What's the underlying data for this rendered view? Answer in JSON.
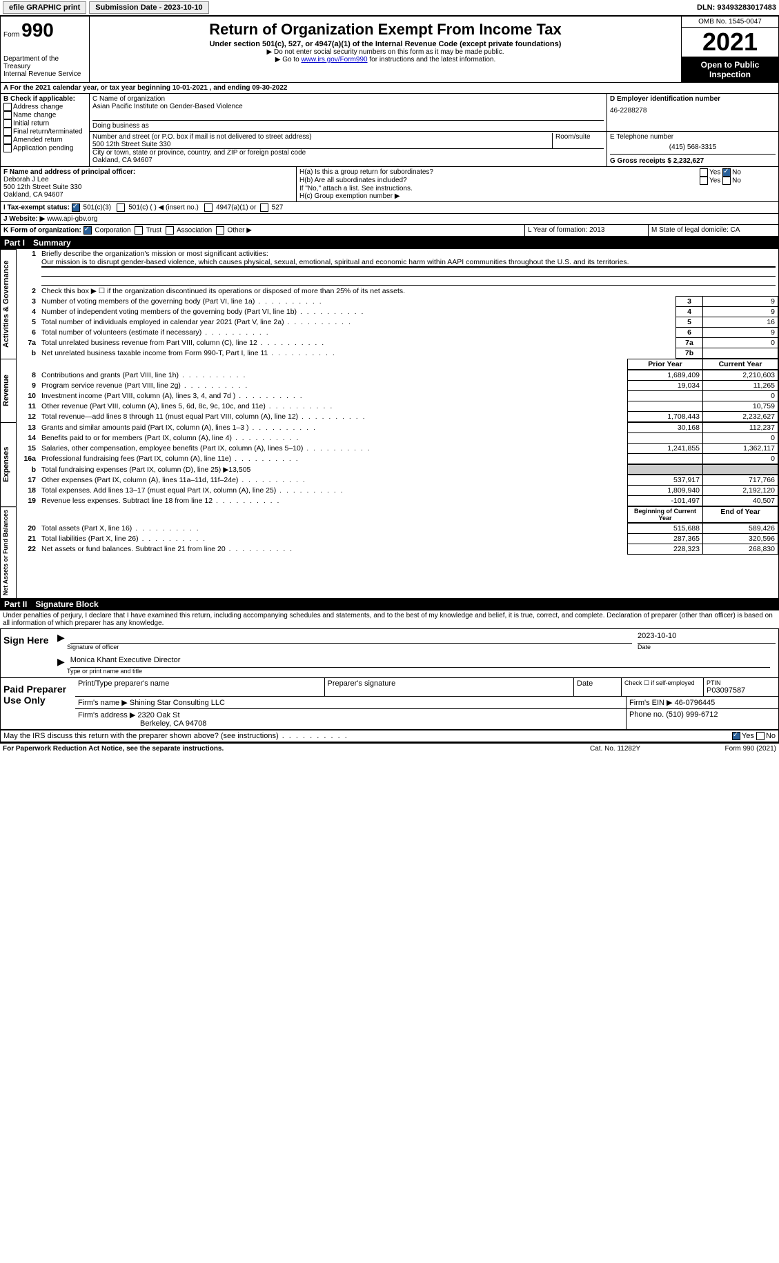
{
  "topbar": {
    "efile": "efile GRAPHIC print",
    "submission_label": "Submission Date - 2023-10-10",
    "dln_label": "DLN: 93493283017483"
  },
  "header": {
    "form_word": "Form",
    "form_num": "990",
    "dept": "Department of the Treasury",
    "irs": "Internal Revenue Service",
    "title": "Return of Organization Exempt From Income Tax",
    "sub": "Under section 501(c), 527, or 4947(a)(1) of the Internal Revenue Code (except private foundations)",
    "note1": "▶ Do not enter social security numbers on this form as it may be made public.",
    "note2_pre": "▶ Go to ",
    "note2_link": "www.irs.gov/Form990",
    "note2_post": " for instructions and the latest information.",
    "omb": "OMB No. 1545-0047",
    "year": "2021",
    "open": "Open to Public Inspection"
  },
  "periodA": "A For the 2021 calendar year, or tax year beginning 10-01-2021     , and ending 09-30-2022",
  "boxB": {
    "label": "B Check if applicable:",
    "opts": [
      "Address change",
      "Name change",
      "Initial return",
      "Final return/terminated",
      "Amended return",
      "Application pending"
    ]
  },
  "boxC": {
    "name_label": "C Name of organization",
    "name": "Asian Pacific Institute on Gender-Based Violence",
    "dba_label": "Doing business as",
    "addr_label": "Number and street (or P.O. box if mail is not delivered to street address)",
    "room_label": "Room/suite",
    "addr": "500 12th Street Suite 330",
    "city_label": "City or town, state or province, country, and ZIP or foreign postal code",
    "city": "Oakland, CA  94607"
  },
  "boxD": {
    "label": "D Employer identification number",
    "value": "46-2288278"
  },
  "boxE": {
    "label": "E Telephone number",
    "value": "(415) 568-3315"
  },
  "boxG": {
    "label": "G Gross receipts $ 2,232,627"
  },
  "boxF": {
    "label": "F  Name and address of principal officer:",
    "name": "Deborah J Lee",
    "addr1": "500 12th Street Suite 330",
    "addr2": "Oakland, CA  94607"
  },
  "boxH": {
    "a": "H(a)  Is this a group return for subordinates?",
    "b": "H(b)  Are all subordinates included?",
    "note": "If \"No,\" attach a list. See instructions.",
    "c": "H(c)  Group exemption number ▶",
    "yes": "Yes",
    "no": "No"
  },
  "boxI": {
    "label": "I     Tax-exempt status:",
    "o1": "501(c)(3)",
    "o2": "501(c) (   ) ◀ (insert no.)",
    "o3": "4947(a)(1) or",
    "o4": "527"
  },
  "boxJ": {
    "label": "J    Website: ▶",
    "value": "www.api-gbv.org"
  },
  "boxK": {
    "label": "K Form of organization:",
    "o1": "Corporation",
    "o2": "Trust",
    "o3": "Association",
    "o4": "Other ▶"
  },
  "boxL": {
    "label": "L Year of formation: 2013"
  },
  "boxM": {
    "label": "M State of legal domicile: CA"
  },
  "part1": {
    "num": "Part I",
    "title": "Summary"
  },
  "summary": {
    "sec1_label": "Activities & Governance",
    "l1_label": "Briefly describe the organization's mission or most significant activities:",
    "l1_text": "Our mission is to disrupt gender-based violence, which causes physical, sexual, emotional, spiritual and economic harm within AAPI communities throughout the U.S. and its territories.",
    "l2": "Check this box ▶ ☐  if the organization discontinued its operations or disposed of more than 25% of its net assets.",
    "rows_gov": [
      {
        "n": "3",
        "d": "Number of voting members of the governing body (Part VI, line 1a)",
        "b": "3",
        "v": "9"
      },
      {
        "n": "4",
        "d": "Number of independent voting members of the governing body (Part VI, line 1b)",
        "b": "4",
        "v": "9"
      },
      {
        "n": "5",
        "d": "Total number of individuals employed in calendar year 2021 (Part V, line 2a)",
        "b": "5",
        "v": "16"
      },
      {
        "n": "6",
        "d": "Total number of volunteers (estimate if necessary)",
        "b": "6",
        "v": "9"
      },
      {
        "n": "7a",
        "d": "Total unrelated business revenue from Part VIII, column (C), line 12",
        "b": "7a",
        "v": "0"
      },
      {
        "n": "b",
        "d": "Net unrelated business taxable income from Form 990-T, Part I, line 11",
        "b": "7b",
        "v": ""
      }
    ],
    "sec2_label": "Revenue",
    "col_prior": "Prior Year",
    "col_current": "Current Year",
    "rows_rev": [
      {
        "n": "8",
        "d": "Contributions and grants (Part VIII, line 1h)",
        "p": "1,689,409",
        "c": "2,210,603"
      },
      {
        "n": "9",
        "d": "Program service revenue (Part VIII, line 2g)",
        "p": "19,034",
        "c": "11,265"
      },
      {
        "n": "10",
        "d": "Investment income (Part VIII, column (A), lines 3, 4, and 7d )",
        "p": "",
        "c": "0"
      },
      {
        "n": "11",
        "d": "Other revenue (Part VIII, column (A), lines 5, 6d, 8c, 9c, 10c, and 11e)",
        "p": "",
        "c": "10,759"
      },
      {
        "n": "12",
        "d": "Total revenue—add lines 8 through 11 (must equal Part VIII, column (A), line 12)",
        "p": "1,708,443",
        "c": "2,232,627"
      }
    ],
    "sec3_label": "Expenses",
    "rows_exp": [
      {
        "n": "13",
        "d": "Grants and similar amounts paid (Part IX, column (A), lines 1–3 )",
        "p": "30,168",
        "c": "112,237"
      },
      {
        "n": "14",
        "d": "Benefits paid to or for members (Part IX, column (A), line 4)",
        "p": "",
        "c": "0"
      },
      {
        "n": "15",
        "d": "Salaries, other compensation, employee benefits (Part IX, column (A), lines 5–10)",
        "p": "1,241,855",
        "c": "1,362,117"
      },
      {
        "n": "16a",
        "d": "Professional fundraising fees (Part IX, column (A), line 11e)",
        "p": "",
        "c": "0"
      }
    ],
    "l16b": "Total fundraising expenses (Part IX, column (D), line 25) ▶13,505",
    "rows_exp2": [
      {
        "n": "17",
        "d": "Other expenses (Part IX, column (A), lines 11a–11d, 11f–24e)",
        "p": "537,917",
        "c": "717,766"
      },
      {
        "n": "18",
        "d": "Total expenses. Add lines 13–17 (must equal Part IX, column (A), line 25)",
        "p": "1,809,940",
        "c": "2,192,120"
      },
      {
        "n": "19",
        "d": "Revenue less expenses. Subtract line 18 from line 12",
        "p": "-101,497",
        "c": "40,507"
      }
    ],
    "sec4_label": "Net Assets or Fund Balances",
    "col_begin": "Beginning of Current Year",
    "col_end": "End of Year",
    "rows_net": [
      {
        "n": "20",
        "d": "Total assets (Part X, line 16)",
        "p": "515,688",
        "c": "589,426"
      },
      {
        "n": "21",
        "d": "Total liabilities (Part X, line 26)",
        "p": "287,365",
        "c": "320,596"
      },
      {
        "n": "22",
        "d": "Net assets or fund balances. Subtract line 21 from line 20",
        "p": "228,323",
        "c": "268,830"
      }
    ]
  },
  "part2": {
    "num": "Part II",
    "title": "Signature Block"
  },
  "sig": {
    "penalties": "Under penalties of perjury, I declare that I have examined this return, including accompanying schedules and statements, and to the best of my knowledge and belief, it is true, correct, and complete. Declaration of preparer (other than officer) is based on all information of which preparer has any knowledge.",
    "sign_here": "Sign Here",
    "sig_officer": "Signature of officer",
    "date_val": "2023-10-10",
    "date": "Date",
    "officer_name": "Monica Khant  Executive Director",
    "type_name": "Type or print name and title",
    "paid": "Paid Preparer Use Only",
    "print_name_label": "Print/Type preparer's name",
    "prep_sig_label": "Preparer's signature",
    "check_self": "Check ☐ if self-employed",
    "ptin_label": "PTIN",
    "ptin": "P03097587",
    "firm_name_label": "Firm's name    ▶",
    "firm_name": "Shining Star Consulting LLC",
    "firm_ein_label": "Firm's EIN ▶",
    "firm_ein": "46-0796445",
    "firm_addr_label": "Firm's address ▶",
    "firm_addr1": "2320 Oak St",
    "firm_addr2": "Berkeley, CA  94708",
    "firm_phone_label": "Phone no.",
    "firm_phone": "(510) 999-6712",
    "discuss": "May the IRS discuss this return with the preparer shown above? (see instructions)",
    "yes": "Yes",
    "no": "No"
  },
  "footer": {
    "left": "For Paperwork Reduction Act Notice, see the separate instructions.",
    "mid": "Cat. No. 11282Y",
    "right": "Form 990 (2021)"
  }
}
